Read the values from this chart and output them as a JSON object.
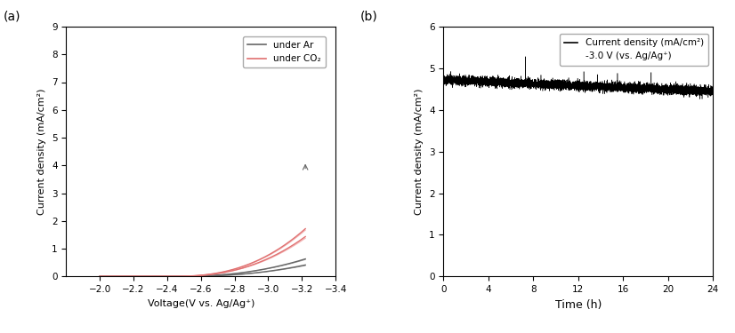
{
  "panel_a": {
    "xlabel": "Voltage(V vs. Ag/Ag⁺)",
    "ylabel": "Current density (mA/cm²)",
    "xlim_left": -1.8,
    "xlim_right": -3.4,
    "ylim": [
      0,
      9
    ],
    "yticks": [
      0,
      1,
      2,
      3,
      4,
      5,
      6,
      7,
      8,
      9
    ],
    "xticks": [
      -2.0,
      -2.2,
      -2.4,
      -2.6,
      -2.8,
      -3.0,
      -3.2,
      -3.4
    ],
    "ar_color": "#666666",
    "co2_color": "#e07070",
    "co2_color2": "#f0a0a0",
    "legend_ar": "under Ar",
    "legend_co2": "under CO₂"
  },
  "panel_b": {
    "xlabel": "Time (h)",
    "ylabel": "Current density (mA/cm²)",
    "xlim": [
      0,
      24
    ],
    "ylim": [
      0,
      6
    ],
    "yticks": [
      0,
      1,
      2,
      3,
      4,
      5,
      6
    ],
    "xticks": [
      0,
      4,
      8,
      12,
      16,
      20,
      24
    ],
    "line_color": "#000000",
    "legend_line1": "Current density (mA/cm²)",
    "legend_line2": "-3.0 V (vs. Ag/Ag⁺)"
  }
}
